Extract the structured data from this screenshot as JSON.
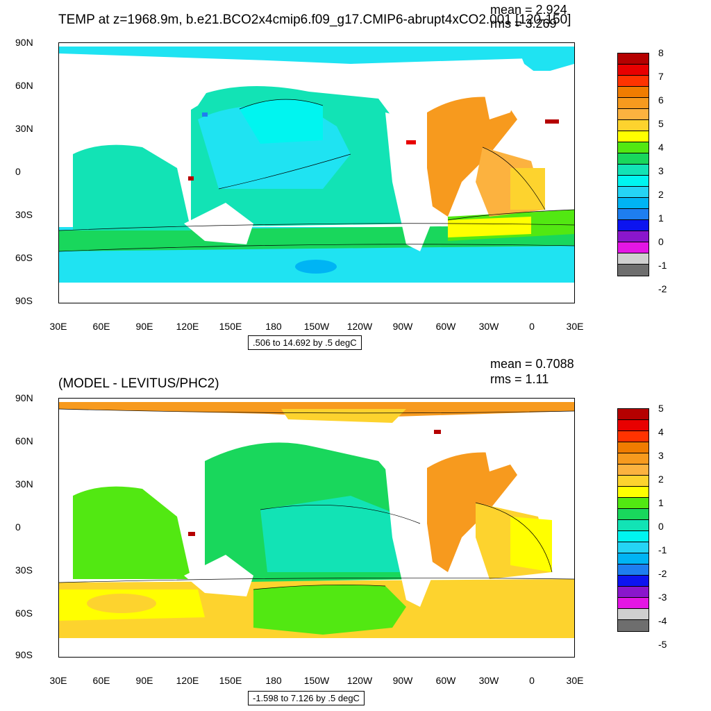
{
  "top_panel": {
    "title": "TEMP at z=1968.9m, b.e21.BCO2x4cmip6.f09_g17.CMIP6-abrupt4xCO2.001 [120-150]",
    "mean_text": "mean = 2.924",
    "rms_text": "rms = 3.269",
    "info_text": ".506 to 14.692 by .5 degC",
    "colorbar_labels": [
      "8",
      "7",
      "6",
      "5",
      "4",
      "3",
      "2",
      "1",
      "0",
      "-1",
      "-2"
    ]
  },
  "bottom_panel": {
    "title": "(MODEL - LEVITUS/PHC2)",
    "mean_text": "mean = 0.7088",
    "rms_text": "rms = 1.11",
    "info_text": "-1.598 to 7.126 by .5 degC",
    "colorbar_labels": [
      "5",
      "4",
      "3",
      "2",
      "1",
      "0",
      "-1",
      "-2",
      "-3",
      "-4",
      "-5"
    ]
  },
  "lat_labels": [
    "90N",
    "60N",
    "30N",
    "0",
    "30S",
    "60S",
    "90S"
  ],
  "lon_labels": [
    "30E",
    "60E",
    "90E",
    "120E",
    "150E",
    "180",
    "150W",
    "120W",
    "90W",
    "60W",
    "30W",
    "0",
    "30E"
  ],
  "colorbar_colors": [
    "#b50000",
    "#e80000",
    "#ff3300",
    "#f07c00",
    "#f79a1e",
    "#fcb23f",
    "#fdd32e",
    "#ffff00",
    "#52e812",
    "#19d75c",
    "#12e3b5",
    "#00f5f0",
    "#25d4f5",
    "#00b4f4",
    "#1e7ef0",
    "#0c14f0",
    "#8a16cc",
    "#e416e4",
    "#cfcfcf",
    "#6e6e6e"
  ]
}
